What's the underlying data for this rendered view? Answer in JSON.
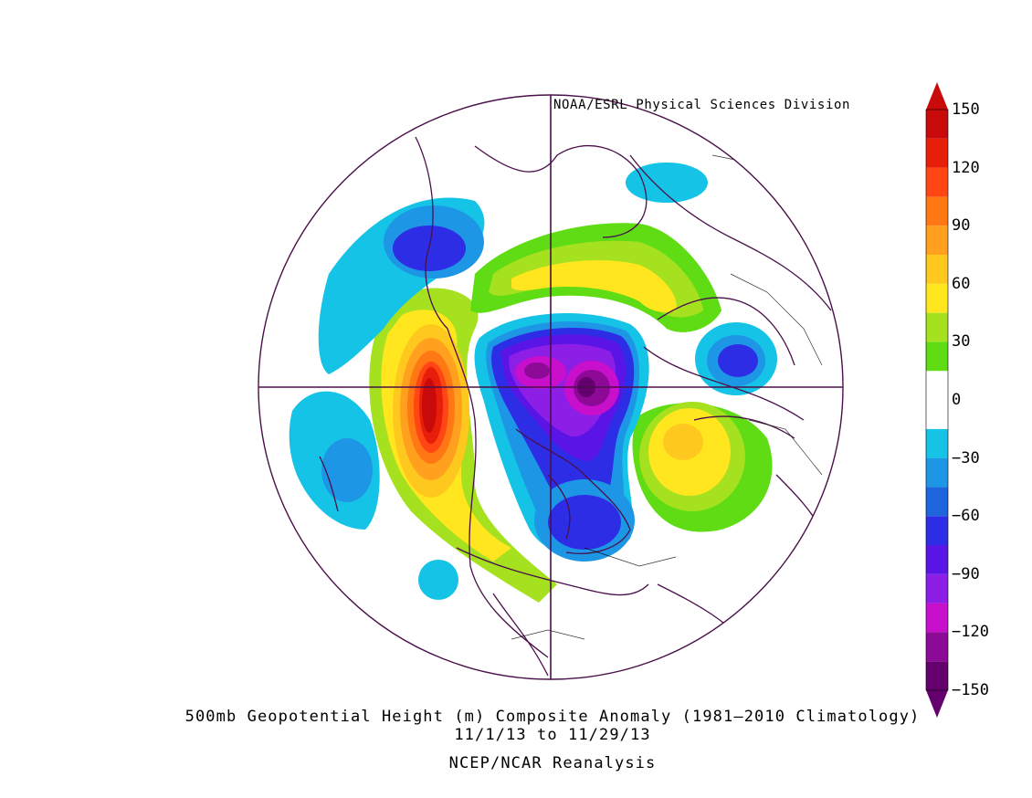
{
  "credit": "NOAA/ESRL Physical Sciences Division",
  "caption": {
    "line1": "500mb Geopotential Height (m) Composite Anomaly (1981–2010 Climatology)",
    "line2": "11/1/13   to 11/29/13",
    "line3": "NCEP/NCAR Reanalysis"
  },
  "colorbar": {
    "labels": [
      "150",
      "120",
      "90",
      "60",
      "30",
      "0",
      "−30",
      "−60",
      "−90",
      "−120",
      "−150"
    ],
    "colors": [
      "#64006e",
      "#8c0a96",
      "#c80fcc",
      "#8c1ee6",
      "#5a14e6",
      "#2d2de6",
      "#1e64dc",
      "#1e96e6",
      "#14c3e6",
      "#ffffff",
      "#ffffff",
      "#5fdc14",
      "#a5e11e",
      "#ffe61e",
      "#ffc81e",
      "#ffa01e",
      "#ff7814",
      "#ff4614",
      "#e61e0a",
      "#c80a0a"
    ]
  },
  "map": {
    "projection": "north polar stereographic",
    "anomaly_regions": [
      {
        "feature": "negative anomaly center over the Arctic / Siberia",
        "min_value": -150
      },
      {
        "feature": "positive anomaly ridge over the Gulf of Alaska",
        "max_value": 150
      },
      {
        "feature": "positive anomaly over the North Atlantic",
        "max_value": 90
      },
      {
        "feature": "negative anomaly over eastern Canada / Hudson Bay",
        "min_value": -60
      }
    ]
  }
}
